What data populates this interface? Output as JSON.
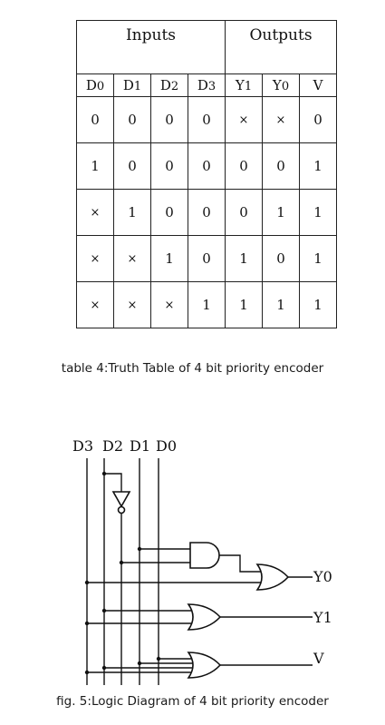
{
  "truth_table": {
    "group_headers": [
      "Inputs",
      "Outputs"
    ],
    "columns": [
      {
        "base": "D",
        "sub": "0"
      },
      {
        "base": "D",
        "sub": "1"
      },
      {
        "base": "D",
        "sub": "2"
      },
      {
        "base": "D",
        "sub": "3"
      },
      {
        "base": "Y",
        "sub": "1"
      },
      {
        "base": "Y",
        "sub": "0"
      },
      {
        "base": "V",
        "sub": ""
      }
    ],
    "rows": [
      [
        "0",
        "0",
        "0",
        "0",
        "×",
        "×",
        "0"
      ],
      [
        "1",
        "0",
        "0",
        "0",
        "0",
        "0",
        "1"
      ],
      [
        "×",
        "1",
        "0",
        "0",
        "0",
        "1",
        "1"
      ],
      [
        "×",
        "×",
        "1",
        "0",
        "1",
        "0",
        "1"
      ],
      [
        "×",
        "×",
        "×",
        "1",
        "1",
        "1",
        "1"
      ]
    ]
  },
  "table_caption": "table 4:Truth Table of 4 bit priority encoder",
  "diagram": {
    "input_labels": [
      "D3",
      "D2",
      "D1",
      "D0"
    ],
    "output_labels": [
      "Y0",
      "Y1",
      "V"
    ]
  },
  "figure_caption": "fig. 5:Logic Diagram of 4 bit priority encoder"
}
